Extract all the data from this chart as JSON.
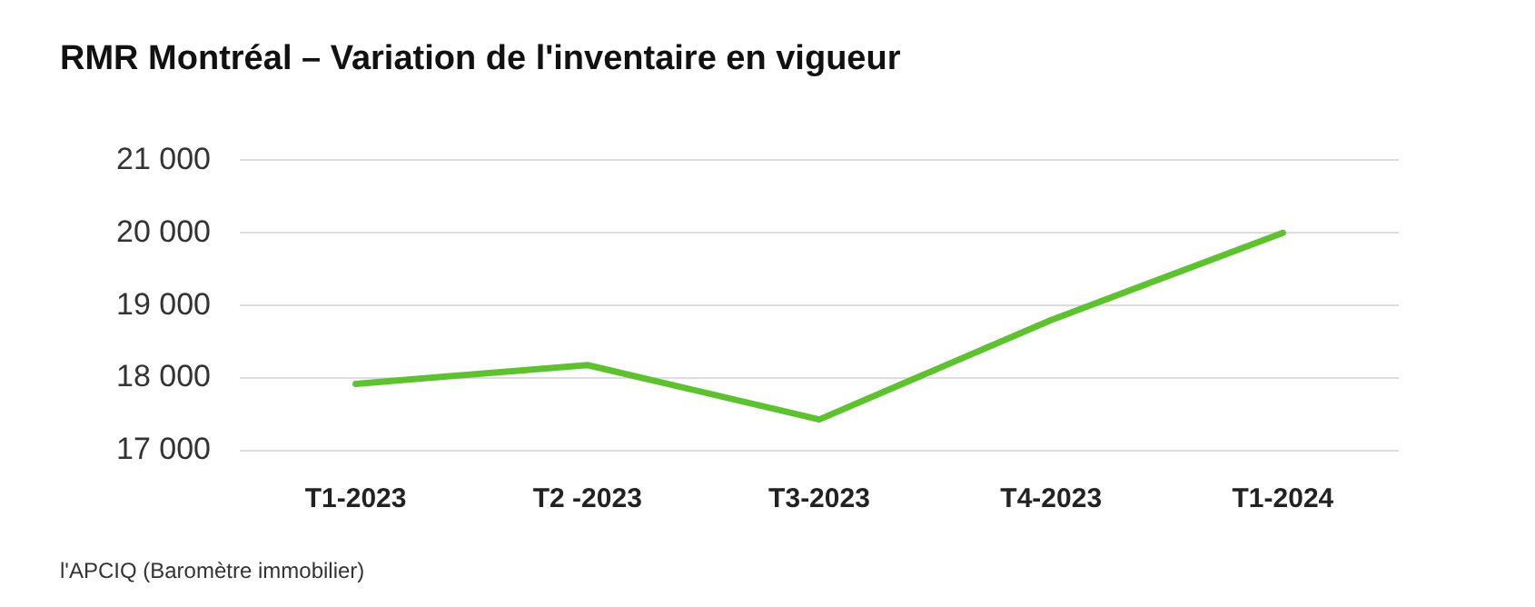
{
  "chart_data": {
    "type": "line",
    "title": "RMR Montréal – Variation de l'inventaire en vigueur",
    "categories": [
      "T1-2023",
      "T2 -2023",
      "T3-2023",
      "T4-2023",
      "T1-2024"
    ],
    "series": [
      {
        "color": "#5ec230",
        "values": [
          17920,
          18180,
          17430,
          18800,
          20000
        ]
      }
    ],
    "ylim": [
      17000,
      21000
    ],
    "yticks": [
      {
        "value": 17000,
        "label": "17 000"
      },
      {
        "value": 18000,
        "label": "18 000"
      },
      {
        "value": 19000,
        "label": "19 000"
      },
      {
        "value": 20000,
        "label": "20 000"
      },
      {
        "value": 21000,
        "label": "21 000"
      }
    ],
    "grid": "y",
    "legend": false,
    "marker": "none",
    "line_style": "solid",
    "annotations": [
      "l'APCIQ (Baromètre immobilier)"
    ]
  }
}
